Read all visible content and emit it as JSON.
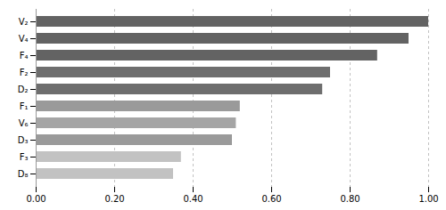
{
  "chart_data": {
    "type": "bar",
    "orientation": "horizontal",
    "categories": [
      "V₂",
      "V₄",
      "F₄",
      "F₂",
      "D₂",
      "F₁",
      "V₆",
      "D₃",
      "F₃",
      "D₈"
    ],
    "values": [
      1.0,
      0.95,
      0.87,
      0.75,
      0.73,
      0.52,
      0.51,
      0.5,
      0.37,
      0.35
    ],
    "colors": [
      "#636363",
      "#636363",
      "#636363",
      "#6e6e6e",
      "#6e6e6e",
      "#9a9a9a",
      "#a5a5a5",
      "#9a9a9a",
      "#c2c2c2",
      "#c2c2c2"
    ],
    "xlim": [
      0.0,
      1.0
    ],
    "xticks": [
      {
        "value": 0.0,
        "label": "0.00"
      },
      {
        "value": 0.2,
        "label": "0.20"
      },
      {
        "value": 0.4,
        "label": "0.40"
      },
      {
        "value": 0.6,
        "label": "0.60"
      },
      {
        "value": 0.8,
        "label": "0.80"
      },
      {
        "value": 1.0,
        "label": "1.00"
      }
    ],
    "grid": true
  }
}
